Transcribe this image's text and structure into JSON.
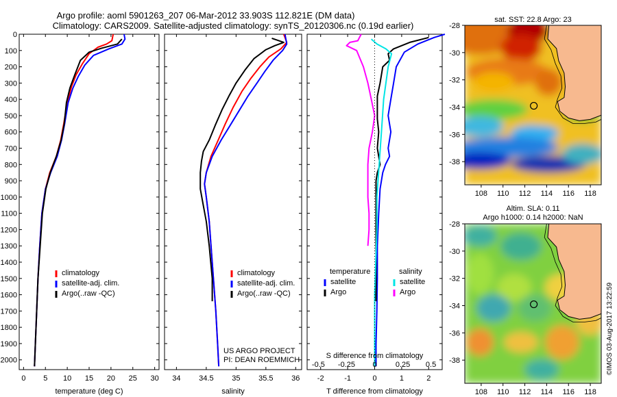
{
  "header": {
    "line1": "Argo profile: aoml 5901263_207 06-Mar-2012 33.903S 112.821E (DM data)",
    "line2": "Climatology: CARS2009. Satellite-adjusted climatology: synTS_20120306.nc (0.19d earlier)"
  },
  "credits": {
    "project": "US ARGO PROJECT",
    "pi": "PI: DEAN ROEMMICH",
    "stamp": "©IMOS 03-Aug-2017 13:22:59"
  },
  "colors": {
    "climatology": "#ff0000",
    "satellite": "#0000ff",
    "argo": "#000000",
    "s_satellite": "#00e5e5",
    "s_argo": "#ff00ff",
    "land": "#f7b98f"
  },
  "chart_data": [
    {
      "type": "line",
      "panel": "temperature",
      "xlabel": "temperature (deg C)",
      "ylabel": "",
      "xlim": [
        -1,
        31
      ],
      "ylim": [
        2060,
        0
      ],
      "xticks": [
        0,
        5,
        10,
        15,
        20,
        25,
        30
      ],
      "yticks": [
        0,
        100,
        200,
        300,
        400,
        500,
        600,
        700,
        800,
        900,
        1000,
        1100,
        1200,
        1300,
        1400,
        1500,
        1600,
        1700,
        1800,
        1900,
        2000
      ],
      "legend": [
        "climatology",
        "satellite-adj. clim.",
        "Argo(..raw -QC)"
      ],
      "series": [
        {
          "name": "climatology",
          "color": "#ff0000",
          "points": [
            [
              20.5,
              0
            ],
            [
              20.2,
              40
            ],
            [
              19,
              60
            ],
            [
              17,
              80
            ],
            [
              15,
              120
            ],
            [
              13.5,
              180
            ],
            [
              12,
              250
            ],
            [
              11,
              320
            ],
            [
              10,
              420
            ],
            [
              9.2,
              550
            ],
            [
              8.5,
              650
            ],
            [
              7.5,
              750
            ],
            [
              6,
              850
            ],
            [
              5,
              950
            ],
            [
              4.2,
              1100
            ],
            [
              3.7,
              1300
            ],
            [
              3.3,
              1500
            ],
            [
              3,
              1700
            ],
            [
              2.7,
              1900
            ],
            [
              2.5,
              2040
            ]
          ]
        },
        {
          "name": "satellite-adj. clim.",
          "color": "#0000ff",
          "points": [
            [
              23,
              0
            ],
            [
              23.2,
              30
            ],
            [
              22.5,
              60
            ],
            [
              19.5,
              90
            ],
            [
              16,
              130
            ],
            [
              14,
              190
            ],
            [
              12.5,
              260
            ],
            [
              11.3,
              330
            ],
            [
              10.2,
              420
            ],
            [
              9.4,
              550
            ],
            [
              8.7,
              650
            ],
            [
              7.7,
              750
            ],
            [
              6.2,
              850
            ],
            [
              5,
              950
            ],
            [
              4.2,
              1100
            ],
            [
              3.7,
              1300
            ],
            [
              3.3,
              1500
            ],
            [
              3,
              1700
            ],
            [
              2.7,
              1900
            ],
            [
              2.5,
              2040
            ]
          ]
        },
        {
          "name": "Argo(..raw -QC)",
          "color": "#000000",
          "points": [
            [
              22.5,
              30
            ],
            [
              21.5,
              60
            ],
            [
              18,
              85
            ],
            [
              15,
              110
            ],
            [
              13,
              160
            ],
            [
              11.7,
              250
            ],
            [
              10.6,
              330
            ],
            [
              9.8,
              420
            ],
            [
              9.3,
              550
            ],
            [
              8.6,
              650
            ],
            [
              7.5,
              750
            ],
            [
              6.1,
              850
            ],
            [
              5.1,
              950
            ],
            [
              4.3,
              1100
            ],
            [
              3.8,
              1300
            ],
            [
              3.3,
              1500
            ],
            [
              3,
              1700
            ],
            [
              2.7,
              1900
            ],
            [
              2.5,
              2040
            ]
          ]
        }
      ]
    },
    {
      "type": "line",
      "panel": "salinity",
      "xlabel": "salinity",
      "ylabel": "",
      "xlim": [
        33.8,
        36.1
      ],
      "ylim": [
        2060,
        0
      ],
      "xticks": [
        34,
        34.5,
        35,
        35.5,
        36
      ],
      "xticklabels": [
        "34",
        "34.5",
        "35",
        "35.5",
        "36"
      ],
      "legend": [
        "climatology",
        "satellite-adj. clim.",
        "Argo(..raw -QC)"
      ],
      "series": [
        {
          "name": "climatology",
          "color": "#ff0000",
          "points": [
            [
              35.8,
              0
            ],
            [
              35.85,
              50
            ],
            [
              35.75,
              90
            ],
            [
              35.55,
              140
            ],
            [
              35.4,
              200
            ],
            [
              35.25,
              270
            ],
            [
              35.1,
              350
            ],
            [
              34.95,
              450
            ],
            [
              34.82,
              550
            ],
            [
              34.7,
              650
            ],
            [
              34.58,
              750
            ],
            [
              34.5,
              850
            ],
            [
              34.47,
              920
            ],
            [
              34.5,
              1000
            ],
            [
              34.55,
              1150
            ],
            [
              34.58,
              1300
            ],
            [
              34.62,
              1500
            ],
            [
              34.66,
              1700
            ],
            [
              34.69,
              1900
            ],
            [
              34.71,
              2040
            ]
          ]
        },
        {
          "name": "satellite-adj. clim.",
          "color": "#0000ff",
          "points": [
            [
              35.82,
              0
            ],
            [
              35.85,
              60
            ],
            [
              35.78,
              100
            ],
            [
              35.62,
              160
            ],
            [
              35.48,
              230
            ],
            [
              35.35,
              300
            ],
            [
              35.2,
              380
            ],
            [
              35.05,
              470
            ],
            [
              34.9,
              560
            ],
            [
              34.75,
              650
            ],
            [
              34.6,
              750
            ],
            [
              34.5,
              850
            ],
            [
              34.47,
              920
            ],
            [
              34.5,
              1000
            ],
            [
              34.55,
              1150
            ],
            [
              34.58,
              1300
            ],
            [
              34.62,
              1500
            ],
            [
              34.66,
              1700
            ],
            [
              34.69,
              1900
            ],
            [
              34.71,
              2040
            ]
          ]
        },
        {
          "name": "Argo(..raw -QC)",
          "color": "#000000",
          "points": [
            [
              35.6,
              25
            ],
            [
              35.8,
              50
            ],
            [
              35.65,
              70
            ],
            [
              35.5,
              95
            ],
            [
              35.3,
              150
            ],
            [
              35.15,
              220
            ],
            [
              35.0,
              300
            ],
            [
              34.88,
              380
            ],
            [
              34.77,
              460
            ],
            [
              34.65,
              560
            ],
            [
              34.55,
              650
            ],
            [
              34.45,
              720
            ],
            [
              34.42,
              780
            ],
            [
              34.4,
              850
            ],
            [
              34.4,
              900
            ],
            [
              34.4,
              950
            ],
            [
              34.45,
              1050
            ],
            [
              34.5,
              1150
            ],
            [
              34.55,
              1300
            ],
            [
              34.6,
              1500
            ],
            [
              34.6,
              1640
            ]
          ]
        }
      ]
    },
    {
      "type": "line",
      "panel": "difference",
      "xlabel": "T difference from climatology",
      "x2label": "S difference from climatology",
      "xlim": [
        -2.5,
        2.5
      ],
      "ylim": [
        2060,
        0
      ],
      "xticks": [
        -2,
        -1,
        0,
        1,
        2
      ],
      "xticklabels": [
        "-2",
        "-1",
        "0",
        "1",
        "2"
      ],
      "sticks": [
        -0.5,
        -0.25,
        0,
        0.25,
        0.5
      ],
      "sticklabels": [
        "-0.5",
        "-0.25",
        "0",
        "0.25",
        "0.5"
      ],
      "legend_groups": {
        "temperature": "temperature",
        "salinity": "salinity"
      },
      "legend": [
        "satellite",
        "Argo",
        "satellite",
        "Argo"
      ],
      "series": [
        {
          "name": "satellite",
          "group": "temperature",
          "color": "#0000ff",
          "points": [
            [
              2.6,
              0
            ],
            [
              2.2,
              20
            ],
            [
              1.6,
              60
            ],
            [
              1.1,
              110
            ],
            [
              0.8,
              200
            ],
            [
              0.7,
              300
            ],
            [
              0.6,
              400
            ],
            [
              0.5,
              500
            ],
            [
              0.6,
              600
            ],
            [
              0.5,
              700
            ],
            [
              0.55,
              750
            ],
            [
              0.4,
              800
            ],
            [
              0.3,
              850
            ],
            [
              0.2,
              950
            ],
            [
              0.15,
              1100
            ],
            [
              0.1,
              1300
            ],
            [
              0.1,
              1500
            ],
            [
              0.08,
              1700
            ],
            [
              0.05,
              1900
            ],
            [
              0.05,
              2040
            ]
          ]
        },
        {
          "name": "Argo",
          "group": "temperature",
          "color": "#000000",
          "points": [
            [
              2,
              20
            ],
            [
              1.3,
              50
            ],
            [
              0.7,
              90
            ],
            [
              0.5,
              120
            ],
            [
              0.55,
              160
            ],
            [
              0.3,
              200
            ],
            [
              0.2,
              300
            ],
            [
              0.1,
              380
            ],
            [
              0.1,
              450
            ],
            [
              0.1,
              520
            ],
            [
              0.15,
              600
            ],
            [
              0.1,
              700
            ],
            [
              0.2,
              800
            ],
            [
              0.1,
              850
            ],
            [
              0.05,
              900
            ],
            [
              0.05,
              1000
            ],
            [
              0.05,
              1100
            ],
            [
              0.05,
              1300
            ],
            [
              0.05,
              1500
            ],
            [
              0.05,
              1640
            ]
          ]
        },
        {
          "name": "satellite",
          "group": "salinity",
          "color": "#00e5e5",
          "points": [
            [
              -0.03,
              30
            ],
            [
              0.02,
              60
            ],
            [
              0.1,
              90
            ],
            [
              0.15,
              120
            ],
            [
              0.12,
              200
            ],
            [
              0.1,
              300
            ],
            [
              0.08,
              400
            ],
            [
              0.07,
              500
            ],
            [
              0.06,
              600
            ],
            [
              0.05,
              700
            ],
            [
              0.04,
              800
            ],
            [
              0.03,
              900
            ],
            [
              0.02,
              1000
            ],
            [
              0.02,
              1200
            ],
            [
              0.01,
              1400
            ],
            [
              0.0,
              1600
            ],
            [
              0.0,
              1800
            ],
            [
              0.0,
              2040
            ]
          ]
        },
        {
          "name": "Argo",
          "group": "salinity",
          "color": "#ff00ff",
          "points": [
            [
              -0.12,
              0
            ],
            [
              -0.15,
              40
            ],
            [
              -0.22,
              50
            ],
            [
              -0.25,
              70
            ],
            [
              -0.16,
              100
            ],
            [
              -0.1,
              200
            ],
            [
              -0.06,
              300
            ],
            [
              -0.03,
              400
            ],
            [
              0.0,
              500
            ],
            [
              -0.02,
              600
            ],
            [
              -0.05,
              700
            ],
            [
              -0.06,
              800
            ],
            [
              -0.06,
              900
            ],
            [
              -0.06,
              1000
            ],
            [
              -0.05,
              1100
            ],
            [
              -0.05,
              1200
            ],
            [
              -0.06,
              1300
            ]
          ]
        }
      ]
    },
    {
      "type": "heatmap",
      "panel": "sst-map",
      "title": "sat. SST: 22.8 Argo: 23",
      "xlim": [
        106.5,
        119
      ],
      "ylim": [
        -39.7,
        -28
      ],
      "xticks": [
        108,
        110,
        112,
        114,
        116,
        118
      ],
      "yticks": [
        -28,
        -30,
        -32,
        -34,
        -36,
        -38
      ],
      "marker": {
        "lon": 112.821,
        "lat": -33.903
      }
    },
    {
      "type": "heatmap",
      "panel": "sla-map",
      "title": "Altim. SLA: 0.11",
      "subtitle": "Argo h1000: 0.14 h2000: NaN",
      "xlim": [
        106.5,
        119
      ],
      "ylim": [
        -39.7,
        -28
      ],
      "xticks": [
        108,
        110,
        112,
        114,
        116,
        118
      ],
      "yticks": [
        -28,
        -30,
        -32,
        -34,
        -36,
        -38
      ],
      "marker": {
        "lon": 112.821,
        "lat": -33.903
      }
    }
  ]
}
